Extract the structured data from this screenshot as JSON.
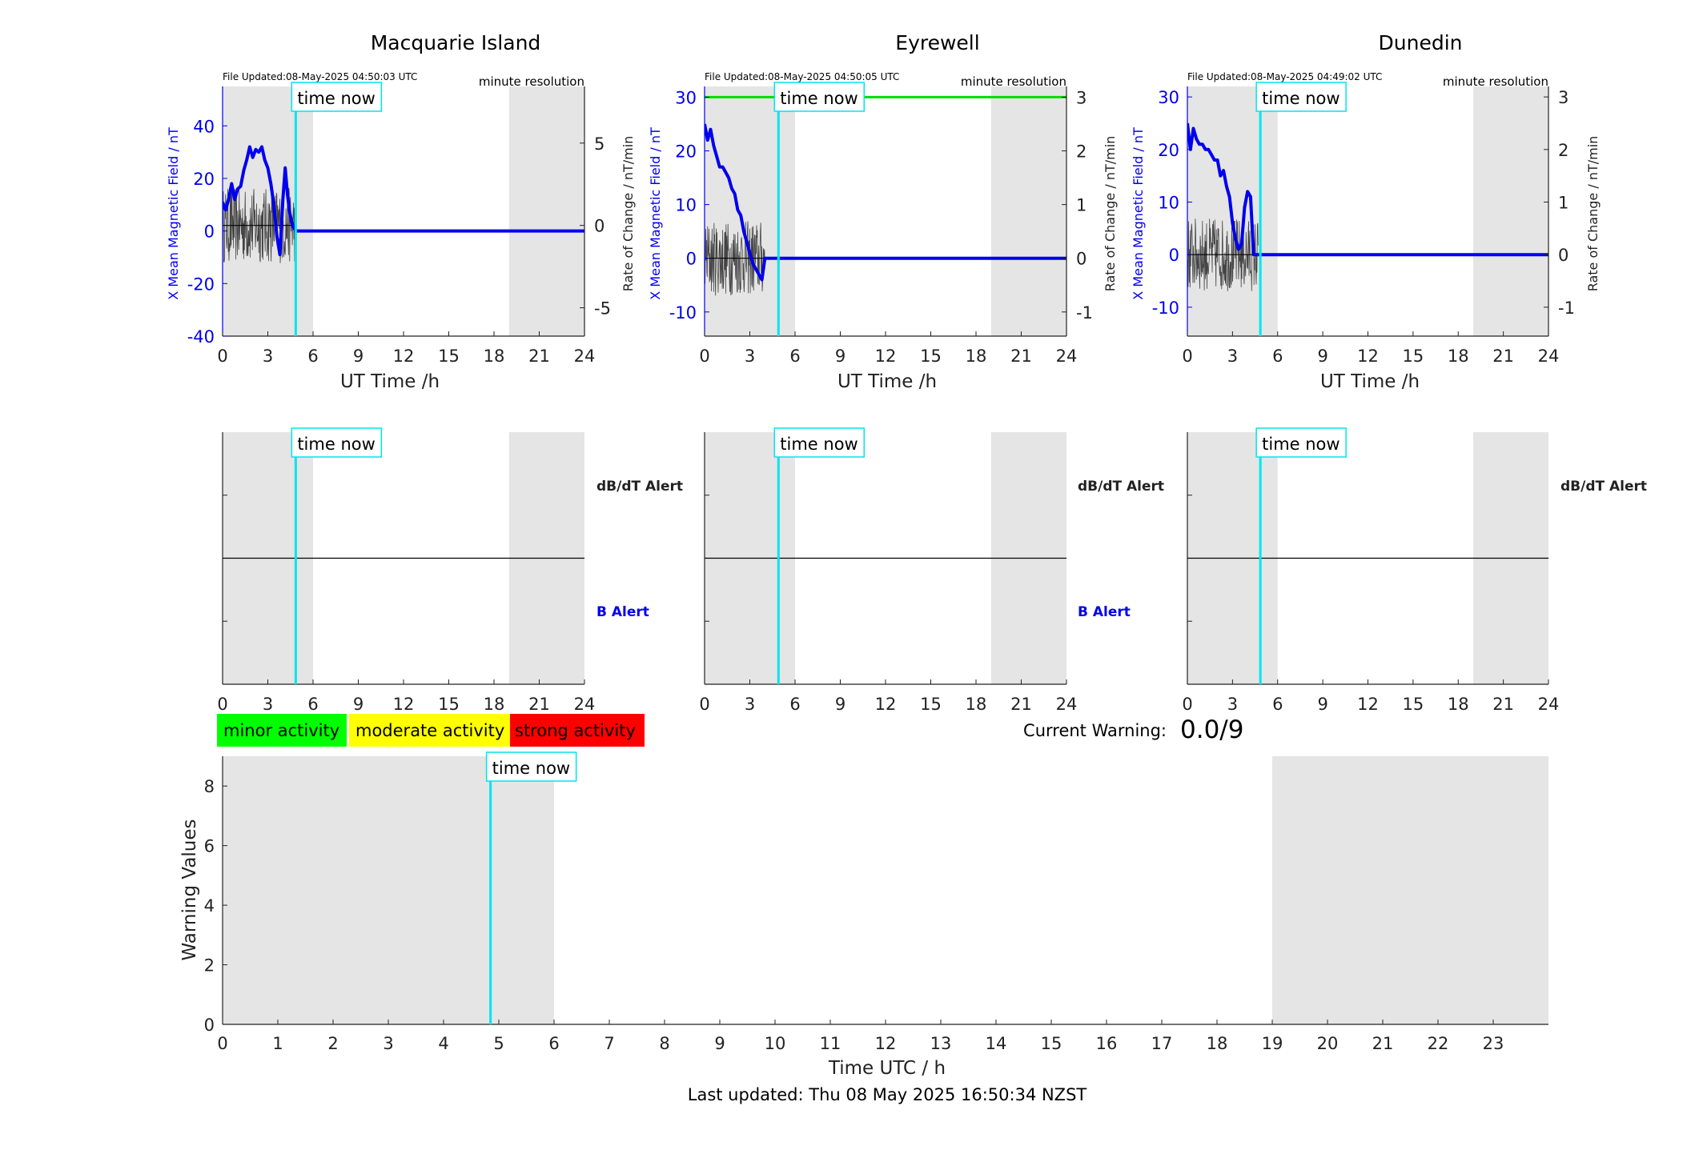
{
  "footer": {
    "last_updated": "Last updated: Thu 08 May 2025 16:50:34 NZST"
  },
  "colors": {
    "field": "#0000ee",
    "rate": "#444444",
    "time_now": "#00e5ee",
    "shade": "#e5e5e5",
    "threshold": "#00dd00",
    "minor": "#00ff00",
    "moderate": "#ffff00",
    "strong": "#ff0000"
  },
  "legend": {
    "minor": "minor activity",
    "moderate": "moderate activity",
    "strong": "strong activity"
  },
  "current_warning": {
    "label": "Current Warning:",
    "value": "0.0/9"
  },
  "time_now_label": "time now",
  "alert_labels": {
    "dbdt": "dB/dT Alert",
    "b": "B Alert"
  },
  "chart_data": [
    {
      "type": "line",
      "title": "Macquarie Island",
      "file_updated": "File Updated:08-May-2025 04:50:03 UTC",
      "resolution": "minute resolution",
      "xlabel": "UT Time /h",
      "ylabel": "X Mean Magnetic Field / nT",
      "ylabel_right": "Rate of Change / nT/min",
      "xlim": [
        0,
        24
      ],
      "xticks": [
        0,
        3,
        6,
        9,
        12,
        15,
        18,
        21,
        24
      ],
      "ylim": [
        -40,
        55
      ],
      "yticks": [
        -40,
        -20,
        0,
        20,
        40
      ],
      "ylim_right": [
        -6.72,
        8.44
      ],
      "yticks_right": [
        -5,
        0,
        5
      ],
      "shaded_hours": [
        [
          0,
          6
        ],
        [
          19,
          24
        ]
      ],
      "time_now": 4.85,
      "series": [
        {
          "name": "X Mean Magnetic Field",
          "x": [
            0,
            0.2,
            0.4,
            0.6,
            0.8,
            1.0,
            1.2,
            1.4,
            1.6,
            1.8,
            2.0,
            2.2,
            2.4,
            2.6,
            2.8,
            3.0,
            3.2,
            3.4,
            3.6,
            3.8,
            4.0,
            4.15,
            4.3,
            4.45,
            4.6,
            4.75,
            4.85,
            5,
            24
          ],
          "values": [
            11,
            8,
            12,
            18,
            12,
            16,
            17,
            23,
            27,
            32,
            28,
            31,
            30,
            32,
            27,
            24,
            18,
            10,
            -2,
            -9,
            12,
            24,
            14,
            7,
            3,
            1,
            0,
            0,
            0
          ]
        },
        {
          "name": "Rate of Change",
          "x_range": [
            0,
            4.9
          ],
          "amplitude": 2.3
        }
      ]
    },
    {
      "type": "line",
      "title": "Eyrewell",
      "file_updated": "File Updated:08-May-2025 04:50:05 UTC",
      "resolution": "minute resolution",
      "xlabel": "UT Time /h",
      "ylabel": "X Mean Magnetic Field / nT",
      "ylabel_right": "Rate of Change / nT/min",
      "xlim": [
        0,
        24
      ],
      "xticks": [
        0,
        3,
        6,
        9,
        12,
        15,
        18,
        21,
        24
      ],
      "ylim": [
        -14.5,
        32
      ],
      "yticks": [
        -10,
        0,
        10,
        20,
        30
      ],
      "ylim_right": [
        -1.45,
        3.2
      ],
      "yticks_right": [
        -1,
        0,
        1,
        2,
        3
      ],
      "threshold": 30,
      "shaded_hours": [
        [
          0,
          6
        ],
        [
          19,
          24
        ]
      ],
      "time_now": 4.9,
      "series": [
        {
          "name": "X Mean Magnetic Field",
          "x": [
            0,
            0.2,
            0.4,
            0.6,
            0.8,
            1.0,
            1.2,
            1.4,
            1.6,
            1.8,
            2.0,
            2.2,
            2.4,
            2.6,
            2.8,
            3.0,
            3.2,
            3.4,
            3.6,
            3.8,
            4.0,
            4.2,
            24
          ],
          "values": [
            25,
            22,
            24,
            21,
            19,
            17,
            17,
            16,
            15,
            13,
            12,
            9,
            8,
            5,
            3,
            1,
            -1,
            -2,
            -3,
            -4,
            0,
            0,
            0
          ]
        },
        {
          "name": "Rate of Change",
          "x_range": [
            0,
            4.0
          ],
          "amplitude": 0.7
        }
      ]
    },
    {
      "type": "line",
      "title": "Dunedin",
      "file_updated": "File Updated:08-May-2025 04:49:02 UTC",
      "resolution": "minute resolution",
      "xlabel": "UT Time /h",
      "ylabel": "X Mean Magnetic Field / nT",
      "ylabel_right": "Rate of Change / nT/min",
      "xlim": [
        0,
        24
      ],
      "xticks": [
        0,
        3,
        6,
        9,
        12,
        15,
        18,
        21,
        24
      ],
      "ylim": [
        -15.5,
        32
      ],
      "yticks": [
        -10,
        0,
        10,
        20,
        30
      ],
      "ylim_right": [
        -1.55,
        3.2
      ],
      "yticks_right": [
        -1,
        0,
        1,
        2,
        3
      ],
      "shaded_hours": [
        [
          0,
          6
        ],
        [
          19,
          24
        ]
      ],
      "time_now": 4.85,
      "series": [
        {
          "name": "X Mean Magnetic Field",
          "x": [
            0,
            0.2,
            0.4,
            0.6,
            0.8,
            1.0,
            1.2,
            1.4,
            1.6,
            1.8,
            2.0,
            2.2,
            2.4,
            2.6,
            2.8,
            3.0,
            3.2,
            3.4,
            3.6,
            3.8,
            4.0,
            4.2,
            4.4,
            4.6,
            4.75,
            4.8,
            4.85,
            24
          ],
          "values": [
            25,
            20,
            24,
            22,
            21,
            21,
            20,
            20,
            19,
            18,
            18,
            15,
            16,
            13,
            11,
            6,
            3,
            1,
            2,
            9,
            12,
            11,
            0,
            0,
            0,
            0,
            0,
            0
          ]
        },
        {
          "name": "Rate of Change",
          "x_range": [
            0,
            4.7
          ],
          "amplitude": 0.7
        }
      ]
    },
    {
      "type": "line",
      "xlabel": "Time UTC / h",
      "ylabel": "Warning Values",
      "xlim": [
        0,
        24
      ],
      "xticks": [
        0,
        1,
        2,
        3,
        4,
        5,
        6,
        7,
        8,
        9,
        10,
        11,
        12,
        13,
        14,
        15,
        16,
        17,
        18,
        19,
        20,
        21,
        22,
        23
      ],
      "ylim": [
        0,
        9
      ],
      "yticks": [
        0,
        2,
        4,
        6,
        8
      ],
      "shaded_hours": [
        [
          0,
          6
        ],
        [
          19,
          24
        ]
      ],
      "time_now": 4.85,
      "series": []
    }
  ]
}
